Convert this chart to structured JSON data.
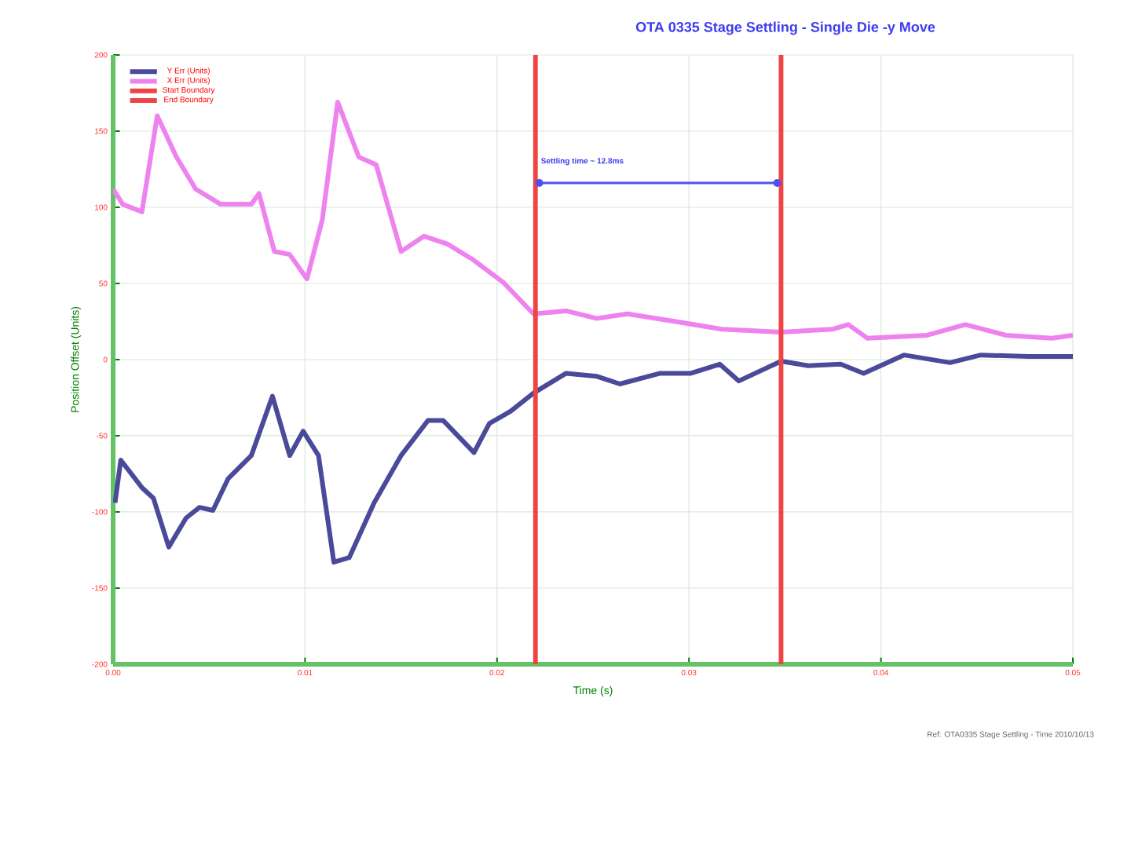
{
  "chart_data": {
    "type": "line",
    "title": "OTA 0335 Stage Settling - Single Die -y Move",
    "xlabel": "Time (s)",
    "ylabel": "Position Offset (Units)",
    "xlim": [
      0,
      0.05
    ],
    "ylim": [
      -200,
      200
    ],
    "xticks": [
      {
        "value": 0,
        "label": "0.00"
      },
      {
        "value": 0.01,
        "label": "0.01"
      },
      {
        "value": 0.02,
        "label": "0.02"
      },
      {
        "value": 0.03,
        "label": "0.03"
      },
      {
        "value": 0.04,
        "label": "0.04"
      },
      {
        "value": 0.05,
        "label": "0.05"
      }
    ],
    "yticks": [
      -200,
      -150,
      -100,
      -50,
      0,
      50,
      100,
      150,
      200
    ],
    "grid": true,
    "legend": "top left",
    "series": [
      {
        "name": "Y Err (Units)",
        "color": "#4a4a9a",
        "x": [
          0.0001,
          0.0004,
          0.0015,
          0.0021,
          0.0029,
          0.0038,
          0.0045,
          0.0052,
          0.006,
          0.0072,
          0.0083,
          0.0092,
          0.0099,
          0.0107,
          0.0115,
          0.0123,
          0.0136,
          0.015,
          0.0164,
          0.0172,
          0.0188,
          0.0196,
          0.0207,
          0.0219,
          0.0236,
          0.0252,
          0.0264,
          0.0285,
          0.0301,
          0.0316,
          0.0326,
          0.0348,
          0.0362,
          0.0379,
          0.0391,
          0.0412,
          0.0436,
          0.0452,
          0.0477,
          0.05
        ],
        "values": [
          -94,
          -66,
          -84,
          -91,
          -123,
          -104,
          -97,
          -99,
          -78,
          -63,
          -24,
          -63,
          -47,
          -63,
          -133,
          -130,
          -94,
          -63,
          -40,
          -40,
          -61,
          -42,
          -34,
          -22,
          -9,
          -11,
          -16,
          -9,
          -9,
          -3,
          -14,
          -1,
          -4,
          -3,
          -9,
          3,
          -2,
          3,
          2,
          2
        ]
      },
      {
        "name": "X Err (Units)",
        "color": "#ee82ee",
        "x": [
          0,
          0.0005,
          0.0015,
          0.0023,
          0.0033,
          0.0043,
          0.0056,
          0.0072,
          0.0076,
          0.0084,
          0.0092,
          0.0101,
          0.0109,
          0.0117,
          0.0128,
          0.0137,
          0.015,
          0.0162,
          0.0174,
          0.0187,
          0.0203,
          0.0219,
          0.0236,
          0.0252,
          0.0268,
          0.0293,
          0.0317,
          0.0348,
          0.0375,
          0.0383,
          0.0393,
          0.0424,
          0.0444,
          0.0465,
          0.0489,
          0.05
        ],
        "values": [
          112,
          102,
          97,
          160,
          133,
          112,
          102,
          102,
          109,
          71,
          69,
          53,
          92,
          169,
          133,
          128,
          71,
          81,
          76,
          66,
          51,
          30,
          32,
          27,
          30,
          25,
          20,
          18,
          20,
          23,
          14,
          16,
          23,
          16,
          14,
          16
        ]
      },
      {
        "name": "Start Boundary",
        "color": "#ee4444",
        "x": [
          0.022,
          0.022
        ],
        "values": [
          -200,
          200
        ]
      },
      {
        "name": "End Boundary",
        "color": "#ee4444",
        "x": [
          0.0348,
          0.0348
        ],
        "values": [
          -200,
          200
        ]
      }
    ],
    "annotations": [
      "Settling time ~ 12.8ms",
      "Ref: OTA0335 Stage Settling - Time 2010/10/13"
    ]
  }
}
